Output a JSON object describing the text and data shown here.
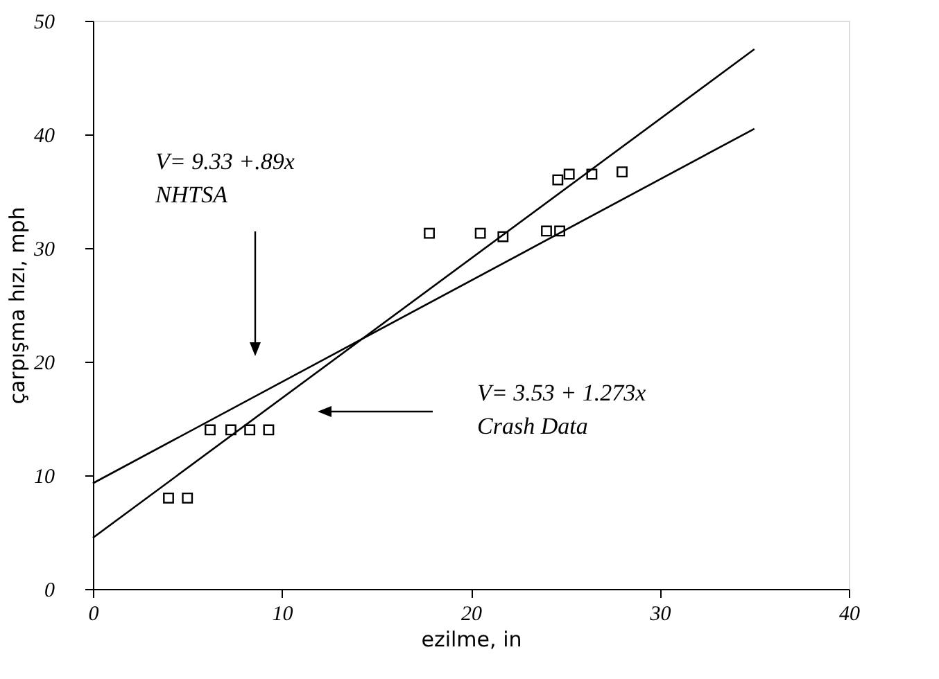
{
  "chart_data": {
    "type": "scatter",
    "xlabel": "ezilme, in",
    "ylabel": "çarpışma hızı, mph",
    "xlim": [
      0,
      40
    ],
    "xticks": [
      0,
      10,
      20,
      30,
      40
    ],
    "ylim": [
      0,
      50
    ],
    "yticks": [
      0,
      10,
      20,
      30,
      40,
      50
    ],
    "grid": false,
    "series": [
      {
        "marker": "square",
        "color": "#000000",
        "x": [
          4,
          5,
          6.2,
          7.3,
          8.3,
          9.3,
          17.8,
          20.5,
          21.7,
          24,
          24.7,
          24.6,
          25.2,
          26.4,
          28
        ],
        "values": [
          8,
          8,
          14,
          14,
          14,
          14,
          31.3,
          31.3,
          31,
          31.5,
          31.5,
          36,
          36.5,
          36.5,
          36.7
        ]
      },
      {
        "type": "line",
        "color": "#000000",
        "x": [
          0,
          35
        ],
        "values": [
          9.3,
          40.5
        ]
      },
      {
        "type": "line",
        "color": "#000000",
        "x": [
          0,
          35
        ],
        "values": [
          4.5,
          47.5
        ]
      }
    ],
    "annotations": [
      "V= 9.33 +.89x",
      "NHTSA",
      "V= 3.53 + 1.273x",
      "Crash Data"
    ]
  }
}
